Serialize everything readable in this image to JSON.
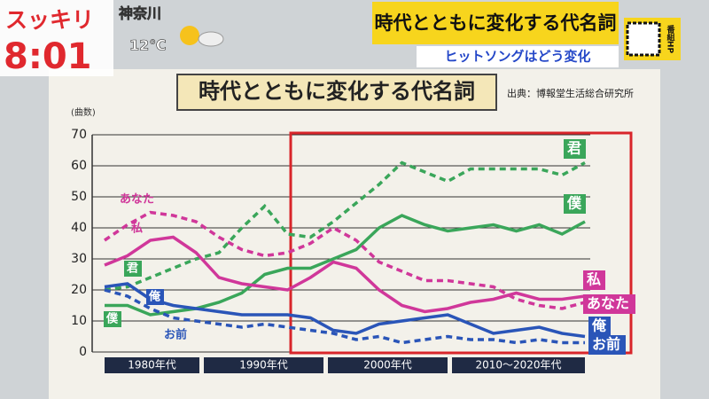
{
  "broadcast": {
    "logo": "スッキリ",
    "time": "8:01",
    "place": "神奈川",
    "temp": "12℃",
    "banner": "時代とともに変化する代名詞",
    "subbanner": "ヒットソングはどう変化",
    "qr_label": "番組HP"
  },
  "chart_data": {
    "type": "line",
    "title": "時代とともに変化する代名詞",
    "source": "出典：博報堂生活総合研究所",
    "y_label": "(曲数)",
    "categories": [
      null,
      null,
      null,
      null,
      null,
      null,
      null,
      null,
      null,
      null,
      null,
      null,
      null,
      null,
      null,
      null,
      null,
      null,
      null,
      null,
      null,
      null
    ],
    "periods": [
      "1980年代",
      "1990年代",
      "2000年代",
      "2010～2020年代"
    ],
    "ylim": [
      0,
      70
    ],
    "yticks": [
      0,
      10,
      20,
      30,
      40,
      50,
      60,
      70
    ],
    "grid": true,
    "series": [
      {
        "name": "君",
        "color": "#3aa65a",
        "style": "dashed",
        "values": [
          20,
          21,
          24,
          27,
          30,
          32,
          40,
          47,
          38,
          37,
          42,
          48,
          54,
          61,
          58,
          55,
          59,
          59,
          59,
          59,
          57,
          61
        ]
      },
      {
        "name": "僕",
        "color": "#3aa65a",
        "style": "solid",
        "values": [
          15,
          15,
          12,
          13,
          14,
          16,
          19,
          25,
          27,
          27,
          30,
          33,
          40,
          44,
          41,
          39,
          40,
          41,
          39,
          41,
          38,
          42
        ]
      },
      {
        "name": "私",
        "color": "#d0379a",
        "style": "solid",
        "values": [
          28,
          31,
          36,
          37,
          32,
          24,
          22,
          21,
          20,
          24,
          29,
          27,
          20,
          15,
          13,
          14,
          16,
          17,
          19,
          17,
          17,
          18
        ]
      },
      {
        "name": "あなた",
        "color": "#d0379a",
        "style": "dashed",
        "values": [
          36,
          41,
          45,
          44,
          42,
          37,
          33,
          31,
          32,
          35,
          40,
          36,
          29,
          26,
          23,
          23,
          22,
          21,
          17,
          15,
          14,
          16
        ]
      },
      {
        "name": "俺",
        "color": "#2a55b8",
        "style": "solid",
        "values": [
          21,
          22,
          17,
          15,
          14,
          13,
          12,
          12,
          12,
          11,
          7,
          6,
          9,
          10,
          11,
          12,
          9,
          6,
          7,
          8,
          6,
          5
        ]
      },
      {
        "name": "お前",
        "color": "#2a55b8",
        "style": "dashed",
        "values": [
          20,
          18,
          14,
          11,
          10,
          9,
          8,
          9,
          8,
          7,
          6,
          4,
          5,
          3,
          4,
          5,
          4,
          4,
          3,
          4,
          3,
          3
        ]
      }
    ]
  }
}
